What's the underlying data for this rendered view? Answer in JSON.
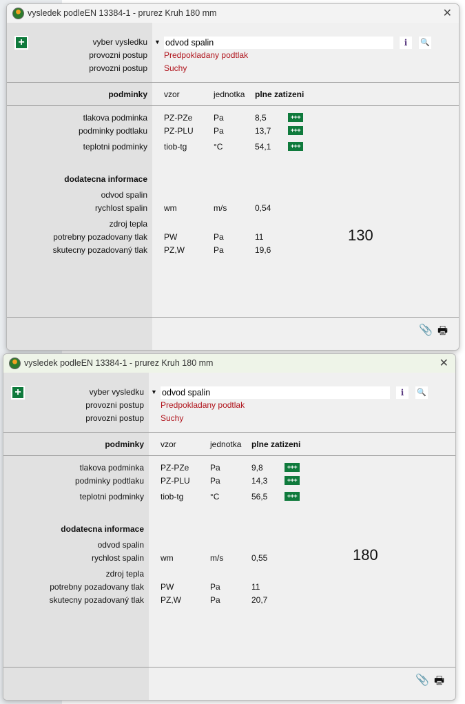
{
  "windows": [
    {
      "title": "vysledek podleEN 13384-1 - prurez Kruh 180 mm",
      "active": false,
      "vyber_label": "vyber vysledku",
      "vyber_value": "odvod spalin",
      "postup1_label": "provozni postup",
      "postup1_value": "Predpokladany podtlak",
      "postup2_label": "provozni postup",
      "postup2_value": "Suchy",
      "headers": {
        "podminky": "podminky",
        "vzor": "vzor",
        "jednotka": "jednotka",
        "plne": "plne zatizeni"
      },
      "conditions": [
        {
          "label": "tlakova podminka",
          "vzor": "PZ-PZe",
          "unit": "Pa",
          "value": "8,5",
          "badge": "+++"
        },
        {
          "label": "podminky podtlaku",
          "vzor": "PZ-PLU",
          "unit": "Pa",
          "value": "13,7",
          "badge": "+++"
        },
        {
          "label": "teplotni podminky",
          "vzor": "tiob-tg",
          "unit": "°C",
          "value": "54,1",
          "badge": "+++"
        }
      ],
      "extra_title": "dodatecna informace",
      "extra": [
        {
          "label": "odvod spalin",
          "vzor": "",
          "unit": "",
          "value": ""
        },
        {
          "label": "rychlost spalin",
          "vzor": "wm",
          "unit": "m/s",
          "value": "0,54"
        },
        {
          "label": "zdroj tepla",
          "vzor": "",
          "unit": "",
          "value": ""
        },
        {
          "label": "potrebny pozadovany tlak",
          "vzor": "PW",
          "unit": "Pa",
          "value": "11"
        },
        {
          "label": "skutecny pozadovaný tlak",
          "vzor": "PZ,W",
          "unit": "Pa",
          "value": "19,6"
        }
      ],
      "big_number": "130"
    },
    {
      "title": "vysledek podleEN 13384-1 - prurez Kruh 180 mm",
      "active": true,
      "vyber_label": "vyber vysledku",
      "vyber_value": "odvod spalin",
      "postup1_label": "provozni postup",
      "postup1_value": "Predpokladany podtlak",
      "postup2_label": "provozni postup",
      "postup2_value": "Suchy",
      "headers": {
        "podminky": "podminky",
        "vzor": "vzor",
        "jednotka": "jednotka",
        "plne": "plne zatizeni"
      },
      "conditions": [
        {
          "label": "tlakova podminka",
          "vzor": "PZ-PZe",
          "unit": "Pa",
          "value": "9,8",
          "badge": "+++"
        },
        {
          "label": "podminky podtlaku",
          "vzor": "PZ-PLU",
          "unit": "Pa",
          "value": "14,3",
          "badge": "+++"
        },
        {
          "label": "teplotni podminky",
          "vzor": "tiob-tg",
          "unit": "°C",
          "value": "56,5",
          "badge": "+++"
        }
      ],
      "extra_title": "dodatecna informace",
      "extra": [
        {
          "label": "odvod spalin",
          "vzor": "",
          "unit": "",
          "value": ""
        },
        {
          "label": "rychlost spalin",
          "vzor": "wm",
          "unit": "m/s",
          "value": "0,55"
        },
        {
          "label": "zdroj tepla",
          "vzor": "",
          "unit": "",
          "value": ""
        },
        {
          "label": "potrebny pozadovany tlak",
          "vzor": "PW",
          "unit": "Pa",
          "value": "11"
        },
        {
          "label": "skutecny pozadovaný tlak",
          "vzor": "PZ,W",
          "unit": "Pa",
          "value": "20,7"
        }
      ],
      "big_number": "180"
    }
  ],
  "icons": {
    "app": "app-flame-icon",
    "close": "close-icon",
    "add": "plus-icon",
    "dropdown": "dropdown-arrow-icon",
    "info": "info-icon",
    "search": "search-icon",
    "attach": "attachment-icon",
    "print": "printer-icon"
  },
  "colors": {
    "badge": "#0f7a3c",
    "red_value": "#b0141c"
  }
}
